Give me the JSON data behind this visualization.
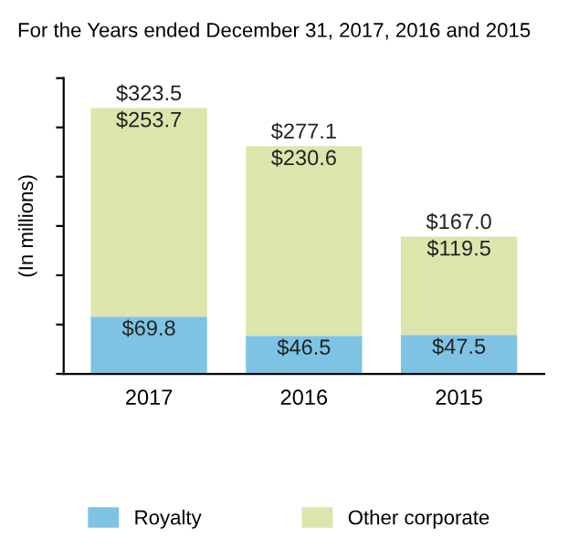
{
  "chart_data": {
    "type": "bar",
    "title": "For the Years ended December 31, 2017, 2016 and 2015",
    "ylabel": "(In millions)",
    "categories": [
      "2017",
      "2016",
      "2015"
    ],
    "stacked": true,
    "series": [
      {
        "name": "Royalty",
        "color": "#7ec3e3",
        "values": [
          69.8,
          46.5,
          47.5
        ],
        "value_labels": [
          "$69.8",
          "$46.5",
          "$47.5"
        ]
      },
      {
        "name": "Other corporate",
        "color": "#dde5ac",
        "values": [
          253.7,
          230.6,
          119.5
        ],
        "value_labels": [
          "$253.7",
          "$230.6",
          "$119.5"
        ]
      }
    ],
    "totals": [
      "$323.5",
      "$277.1",
      "$167.0"
    ],
    "ylim": [
      0,
      360
    ],
    "yticks": [
      {
        "value": 0,
        "label": null
      },
      {
        "value": 60,
        "label": null
      },
      {
        "value": 120,
        "label": null
      },
      {
        "value": 180,
        "label": null
      },
      {
        "value": 240,
        "label": null
      },
      {
        "value": 300,
        "label": null
      },
      {
        "value": 360,
        "label": null
      }
    ],
    "grid": false,
    "legend": "bottom"
  }
}
